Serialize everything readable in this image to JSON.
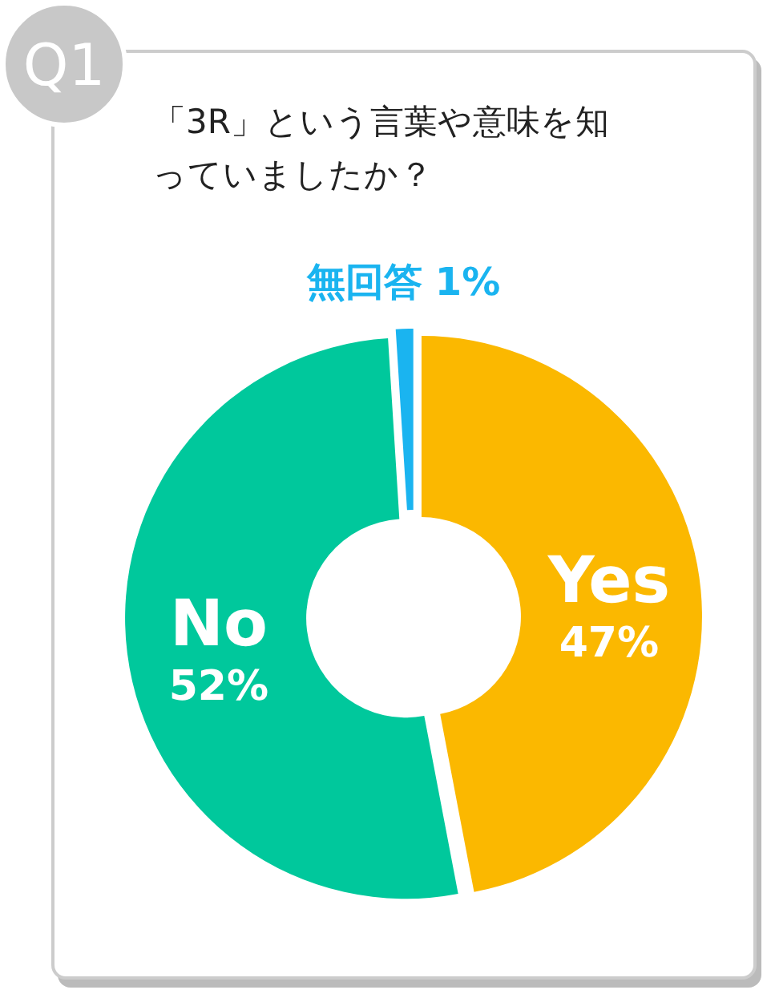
{
  "chart_data": {
    "type": "donut",
    "title": "「3R」という言葉や意味を知っていましたか？",
    "annotations": [
      "Q1"
    ],
    "categories": [
      "Yes",
      "No",
      "無回答"
    ],
    "values": [
      47,
      52,
      1
    ],
    "colors": [
      "#fbb800",
      "#00c89c",
      "#1ab4f0"
    ],
    "value_labels": [
      "47%",
      "52%",
      "1%"
    ]
  }
}
